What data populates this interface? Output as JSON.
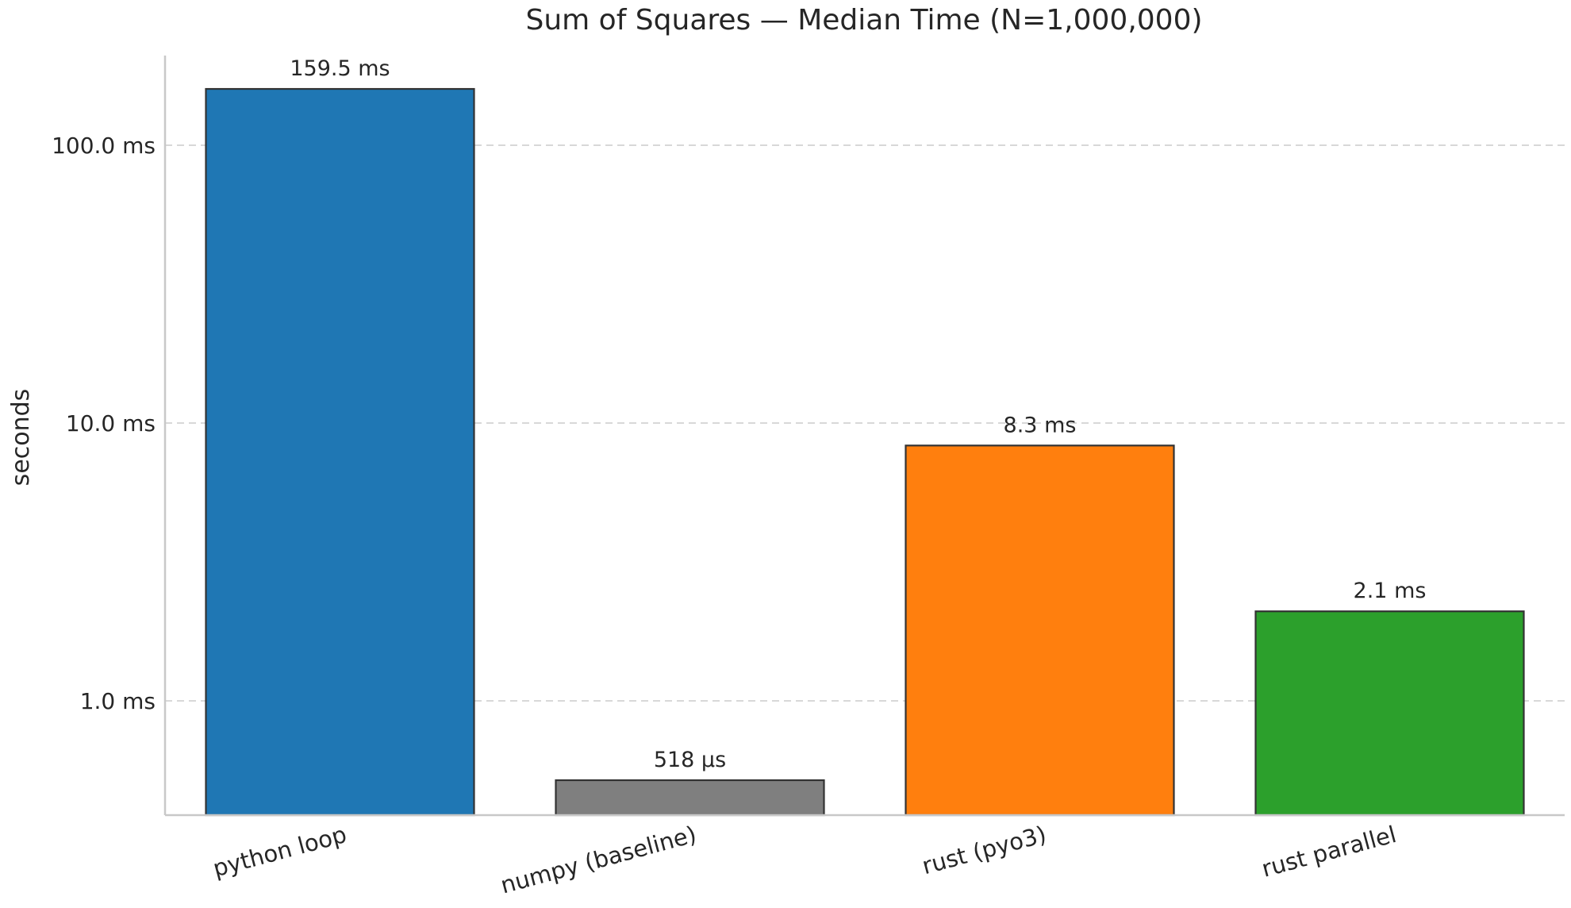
{
  "chart_data": {
    "type": "bar",
    "title": "Sum of Squares — Median Time (N=1,000,000)",
    "xlabel": "",
    "ylabel": "seconds",
    "yscale": "log",
    "ylim": [
      0.00039,
      0.2
    ],
    "grid": "y-major, dashed",
    "categories": [
      "python loop",
      "numpy (baseline)",
      "rust (pyo3)",
      "rust parallel"
    ],
    "values": [
      0.1595,
      0.000518,
      0.0083,
      0.0021
    ],
    "data_labels": [
      "159.5 ms",
      "518 µs",
      "8.3 ms",
      "2.1 ms"
    ],
    "colors": [
      "#1f77b4",
      "#7f7f7f",
      "#ff7f0e",
      "#2ca02c"
    ],
    "y_ticks": [
      0.001,
      0.01,
      0.1
    ],
    "y_tick_labels": [
      "1.0 ms",
      "10.0 ms",
      "100.0 ms"
    ]
  }
}
